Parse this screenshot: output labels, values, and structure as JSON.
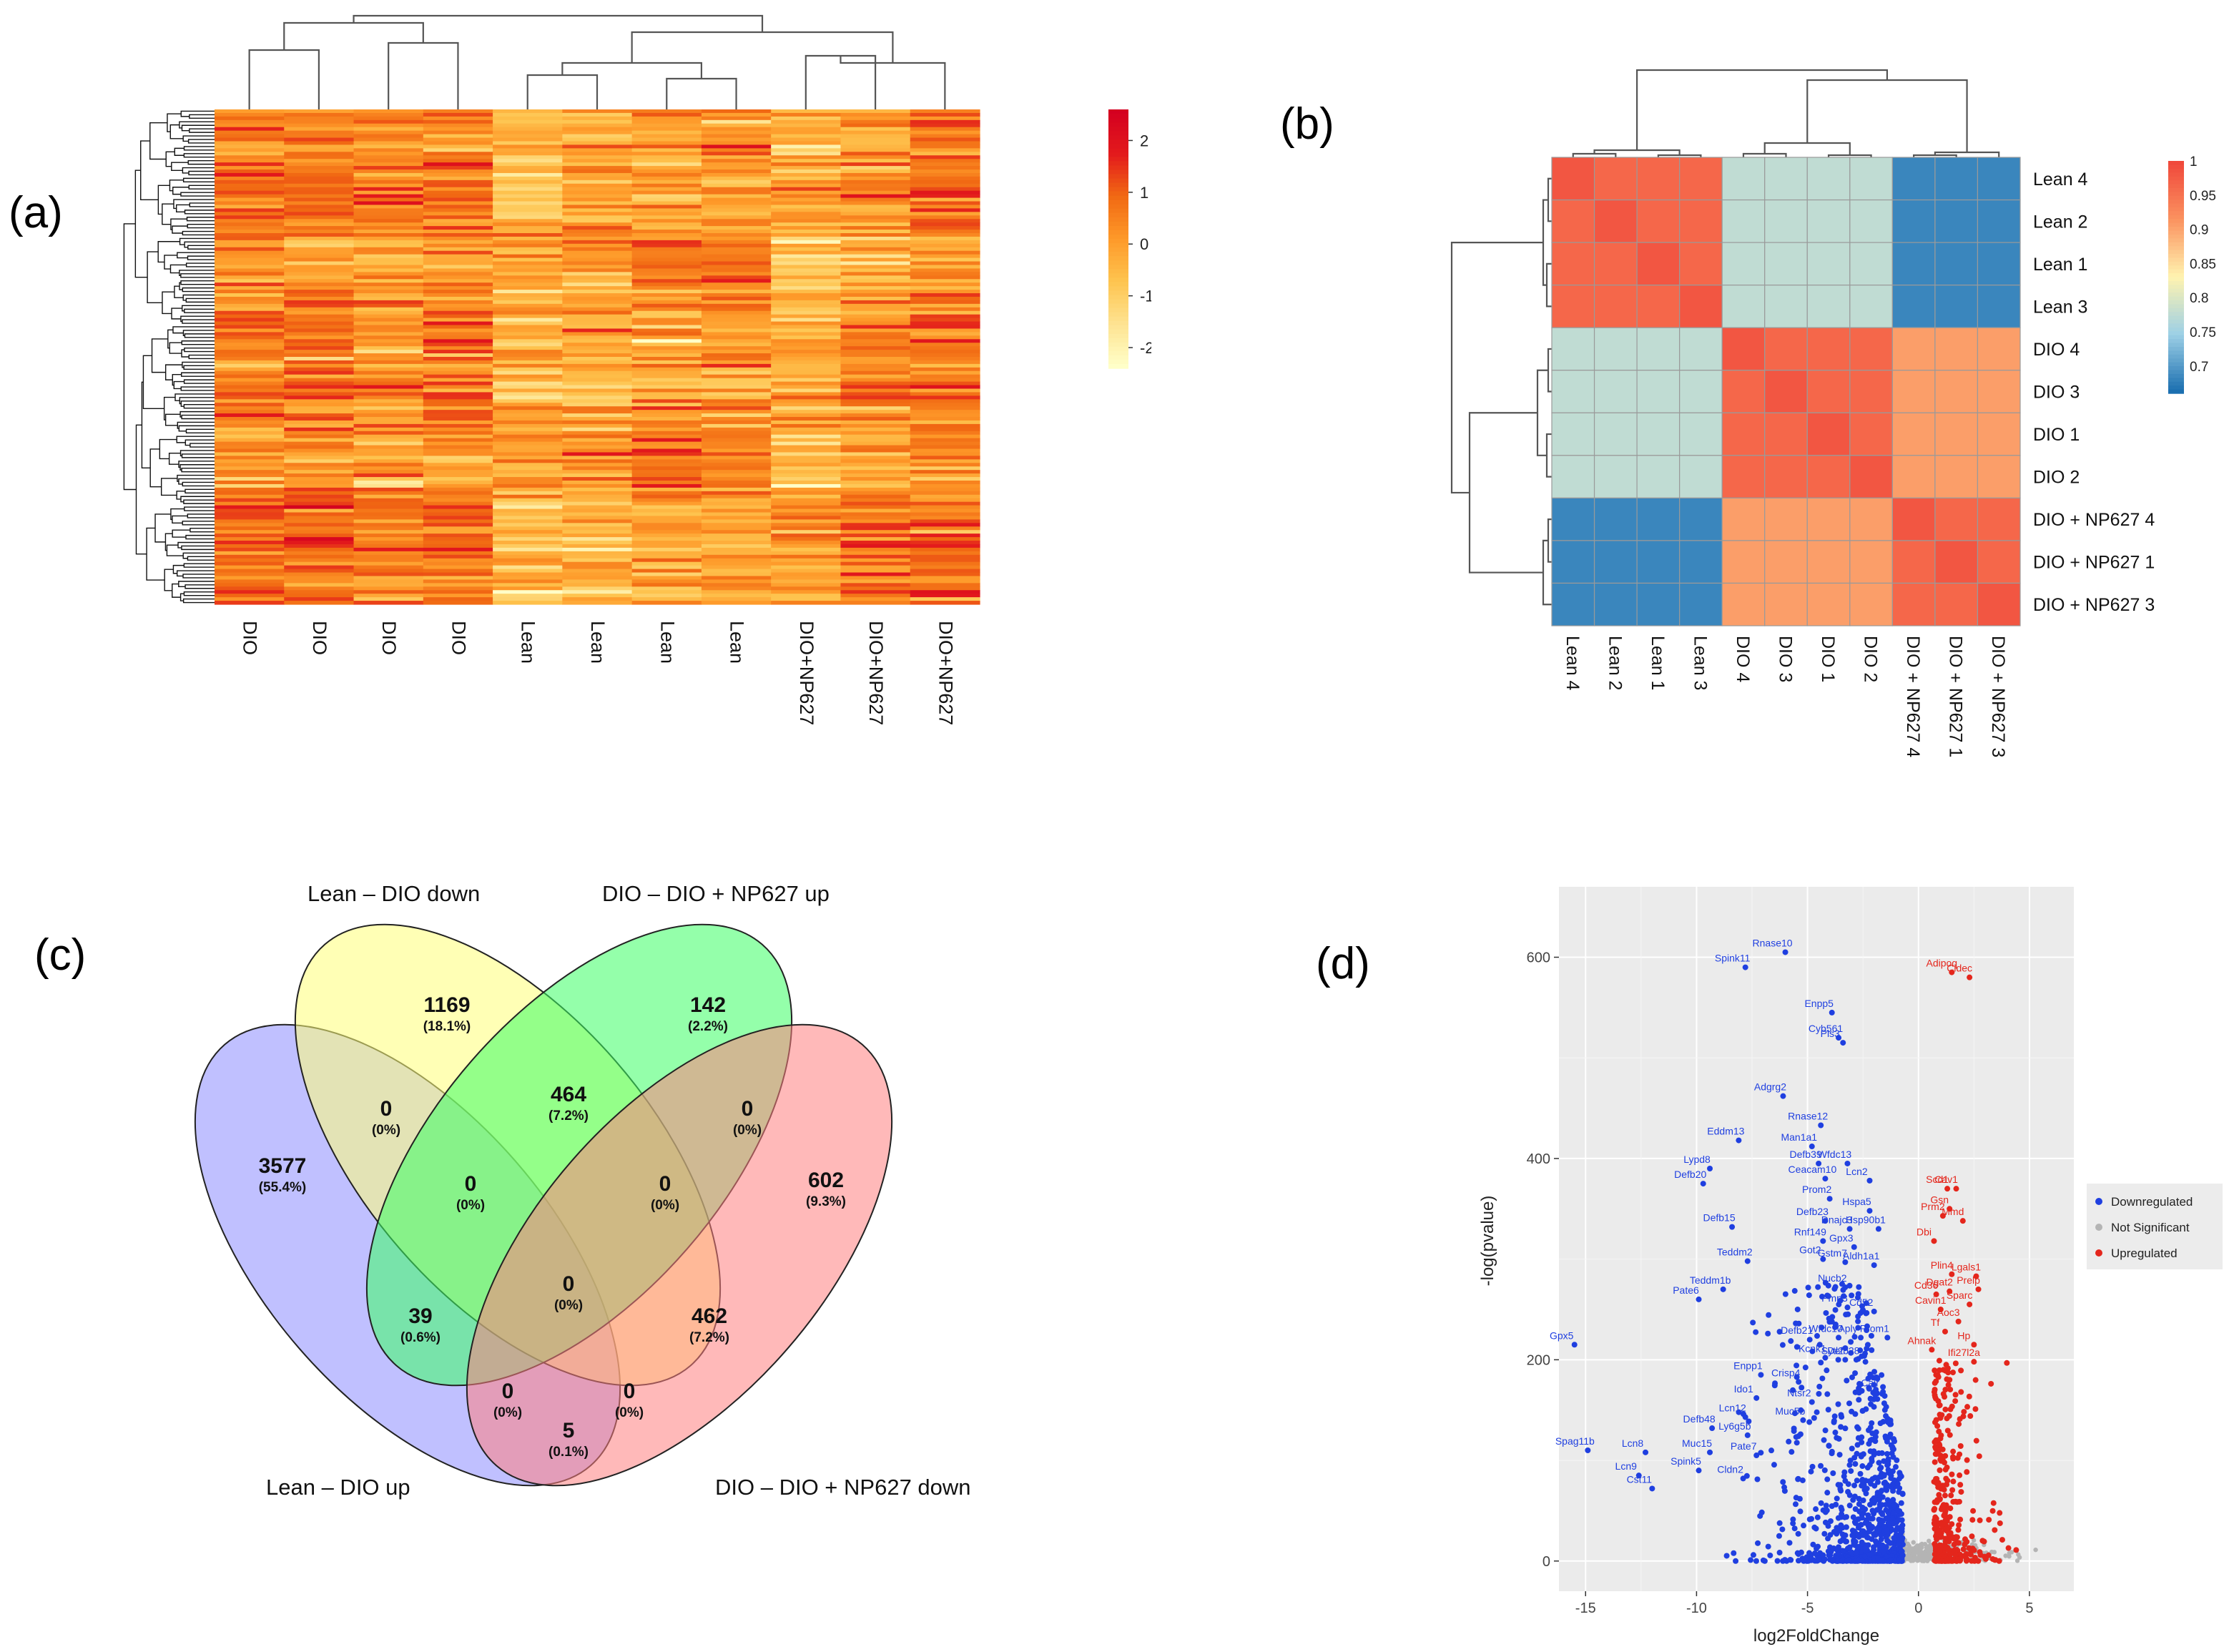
{
  "panel_labels": {
    "a": "(a)",
    "b": "(b)",
    "c": "(c)",
    "d": "(d)"
  },
  "chart_data": [
    {
      "id": "a",
      "type": "heatmap",
      "title": "",
      "columns": [
        "DIO",
        "DIO",
        "DIO",
        "DIO",
        "Lean",
        "Lean",
        "Lean",
        "Lean",
        "DIO+NP627",
        "DIO+NP627",
        "DIO+NP627"
      ],
      "color_scale": {
        "ticks": [
          "2",
          "1",
          "0",
          "-1",
          "-2"
        ],
        "tick_values": [
          2,
          1,
          0,
          -1,
          -2
        ],
        "range": [
          -2.4,
          2.6
        ],
        "colors": [
          "#ffffc8",
          "#fee391",
          "#fec44f",
          "#fe9929",
          "#f16913",
          "#e31a1c",
          "#d40020"
        ]
      },
      "row_count": 140,
      "column_means": [
        0.45,
        0.6,
        0.25,
        0.45,
        -0.45,
        -0.1,
        0.15,
        0.1,
        -0.3,
        0.2,
        0.5
      ]
    },
    {
      "id": "b",
      "type": "heatmap",
      "rows": [
        "Lean 4",
        "Lean 2",
        "Lean 1",
        "Lean 3",
        "DIO 4",
        "DIO 3",
        "DIO 1",
        "DIO 2",
        "DIO + NP627 4",
        "DIO + NP627 1",
        "DIO + NP627 3"
      ],
      "columns": [
        "Lean 4",
        "Lean 2",
        "Lean 1",
        "Lean 3",
        "DIO 4",
        "DIO 3",
        "DIO 1",
        "DIO 2",
        "DIO + NP627 4",
        "DIO + NP627 1",
        "DIO + NP627 3"
      ],
      "groups": [
        0,
        0,
        0,
        0,
        1,
        1,
        1,
        1,
        2,
        2,
        2
      ],
      "block_values": [
        [
          0.965,
          0.775,
          0.68
        ],
        [
          0.775,
          0.965,
          0.905
        ],
        [
          0.68,
          0.905,
          0.965
        ]
      ],
      "self_value": 1.0,
      "color_scale": {
        "ticks": [
          "1",
          "0.95",
          "0.9",
          "0.85",
          "0.8",
          "0.75",
          "0.7"
        ],
        "tick_values": [
          1,
          0.95,
          0.9,
          0.85,
          0.8,
          0.75,
          0.7
        ],
        "range": [
          0.66,
          1.0
        ],
        "colors": [
          "#1b6fb0",
          "#9dd0e6",
          "#fff3b0",
          "#fb9360",
          "#f0493b"
        ]
      }
    },
    {
      "id": "c",
      "type": "venn",
      "sets": [
        {
          "name": "Lean – DIO up",
          "color": "#8c8cff"
        },
        {
          "name": "Lean – DIO down",
          "color": "#ffff78"
        },
        {
          "name": "DIO – DIO + NP627 up",
          "color": "#3cff64"
        },
        {
          "name": "DIO – DIO + NP627 down",
          "color": "#ff8080"
        }
      ],
      "regions": [
        {
          "key": "A",
          "count": "3577",
          "pct": "(55.4%)"
        },
        {
          "key": "B",
          "count": "1169",
          "pct": "(18.1%)"
        },
        {
          "key": "C",
          "count": "142",
          "pct": "(2.2%)"
        },
        {
          "key": "D",
          "count": "602",
          "pct": "(9.3%)"
        },
        {
          "key": "AB",
          "count": "0",
          "pct": "(0%)"
        },
        {
          "key": "BC",
          "count": "464",
          "pct": "(7.2%)"
        },
        {
          "key": "CD",
          "count": "0",
          "pct": "(0%)"
        },
        {
          "key": "ABC",
          "count": "0",
          "pct": "(0%)"
        },
        {
          "key": "BCD",
          "count": "0",
          "pct": "(0%)"
        },
        {
          "key": "AC",
          "count": "39",
          "pct": "(0.6%)"
        },
        {
          "key": "ABCD",
          "count": "0",
          "pct": "(0%)"
        },
        {
          "key": "BD",
          "count": "462",
          "pct": "(7.2%)"
        },
        {
          "key": "ACD",
          "count": "0",
          "pct": "(0%)"
        },
        {
          "key": "ABD",
          "count": "0",
          "pct": "(0%)"
        },
        {
          "key": "AD",
          "count": "5",
          "pct": "(0.1%)"
        }
      ]
    },
    {
      "id": "d",
      "type": "scatter",
      "title": "",
      "xlabel": "log2FoldChange",
      "ylabel": "-log(pvalue)",
      "xlim": [
        -16.2,
        7
      ],
      "ylim": [
        -30,
        670
      ],
      "xticks": [
        -15,
        -10,
        -5,
        0,
        5
      ],
      "yticks": [
        0,
        200,
        400,
        600
      ],
      "legend": {
        "position": "right",
        "items": [
          {
            "label": "Downregulated",
            "color": "#1f3fe0"
          },
          {
            "label": "Not Significant",
            "color": "#b4b4b4"
          },
          {
            "label": "Upregulated",
            "color": "#e4261c"
          }
        ]
      },
      "labeled_points": [
        {
          "gene": "Rnase10",
          "x": -6.0,
          "y": 605,
          "group": "down"
        },
        {
          "gene": "Spink11",
          "x": -7.8,
          "y": 590,
          "group": "down"
        },
        {
          "gene": "Enpp5",
          "x": -3.9,
          "y": 545,
          "group": "down"
        },
        {
          "gene": "Cyb561",
          "x": -3.6,
          "y": 520,
          "group": "down"
        },
        {
          "gene": "Pls3",
          "x": -3.4,
          "y": 515,
          "group": "down"
        },
        {
          "gene": "Adgrg2",
          "x": -6.1,
          "y": 462,
          "group": "down"
        },
        {
          "gene": "Rnase12",
          "x": -4.4,
          "y": 433,
          "group": "down"
        },
        {
          "gene": "Eddm13",
          "x": -8.1,
          "y": 418,
          "group": "down"
        },
        {
          "gene": "Man1a1",
          "x": -4.8,
          "y": 412,
          "group": "down"
        },
        {
          "gene": "Defb39",
          "x": -4.5,
          "y": 395,
          "group": "down"
        },
        {
          "gene": "Wfdc13",
          "x": -3.2,
          "y": 395,
          "group": "down"
        },
        {
          "gene": "Lypd8",
          "x": -9.4,
          "y": 390,
          "group": "down"
        },
        {
          "gene": "Defb20",
          "x": -9.7,
          "y": 375,
          "group": "down"
        },
        {
          "gene": "Ceacam10",
          "x": -4.2,
          "y": 380,
          "group": "down"
        },
        {
          "gene": "Lcn2",
          "x": -2.2,
          "y": 378,
          "group": "down"
        },
        {
          "gene": "Prom2",
          "x": -4.0,
          "y": 360,
          "group": "down"
        },
        {
          "gene": "Hspa5",
          "x": -2.2,
          "y": 348,
          "group": "down"
        },
        {
          "gene": "Defb23",
          "x": -4.2,
          "y": 338,
          "group": "down"
        },
        {
          "gene": "Dnajc3",
          "x": -3.1,
          "y": 330,
          "group": "down"
        },
        {
          "gene": "Hsp90b1",
          "x": -1.8,
          "y": 330,
          "group": "down"
        },
        {
          "gene": "Defb15",
          "x": -8.4,
          "y": 332,
          "group": "down"
        },
        {
          "gene": "Rnf149",
          "x": -4.3,
          "y": 318,
          "group": "down"
        },
        {
          "gene": "Gpx3",
          "x": -2.9,
          "y": 312,
          "group": "down"
        },
        {
          "gene": "Teddm2",
          "x": -7.7,
          "y": 298,
          "group": "down"
        },
        {
          "gene": "Got2",
          "x": -4.3,
          "y": 300,
          "group": "down"
        },
        {
          "gene": "Gstm7",
          "x": -3.3,
          "y": 297,
          "group": "down"
        },
        {
          "gene": "Aldh1a1",
          "x": -2.0,
          "y": 294,
          "group": "down"
        },
        {
          "gene": "Teddm1b",
          "x": -8.8,
          "y": 270,
          "group": "down"
        },
        {
          "gene": "Nucb2",
          "x": -3.3,
          "y": 272,
          "group": "down"
        },
        {
          "gene": "Pate6",
          "x": -9.9,
          "y": 260,
          "group": "down"
        },
        {
          "gene": "Pmp3",
          "x": -3.2,
          "y": 252,
          "group": "down"
        },
        {
          "gene": "Cd52",
          "x": -2.0,
          "y": 248,
          "group": "down"
        },
        {
          "gene": "Gpx5",
          "x": -15.5,
          "y": 215,
          "group": "down"
        },
        {
          "gene": "Defb21",
          "x": -4.9,
          "y": 220,
          "group": "down"
        },
        {
          "gene": "Wfdc10",
          "x": -3.6,
          "y": 222,
          "group": "down"
        },
        {
          "gene": "Aply",
          "x": -2.6,
          "y": 222,
          "group": "down"
        },
        {
          "gene": "Prom1",
          "x": -1.4,
          "y": 222,
          "group": "down"
        },
        {
          "gene": "Kcnk1",
          "x": -4.2,
          "y": 202,
          "group": "down"
        },
        {
          "gene": "Sytl2",
          "x": -3.3,
          "y": 200,
          "group": "down"
        },
        {
          "gene": "Defb28",
          "x": -2.8,
          "y": 200,
          "group": "down"
        },
        {
          "gene": "Enpp1",
          "x": -7.1,
          "y": 185,
          "group": "down"
        },
        {
          "gene": "Crisp4",
          "x": -5.4,
          "y": 178,
          "group": "down"
        },
        {
          "gene": "Ido1",
          "x": -7.3,
          "y": 162,
          "group": "down"
        },
        {
          "gene": "Ntsr2",
          "x": -4.8,
          "y": 158,
          "group": "down"
        },
        {
          "gene": "Calr",
          "x": -1.6,
          "y": 168,
          "group": "down"
        },
        {
          "gene": "Lcn12",
          "x": -7.8,
          "y": 143,
          "group": "down"
        },
        {
          "gene": "Muc5b",
          "x": -5.2,
          "y": 140,
          "group": "down"
        },
        {
          "gene": "Defb48",
          "x": -9.3,
          "y": 132,
          "group": "down"
        },
        {
          "gene": "Ly6g5b",
          "x": -7.7,
          "y": 125,
          "group": "down"
        },
        {
          "gene": "Spag11b",
          "x": -14.9,
          "y": 110,
          "group": "down"
        },
        {
          "gene": "Lcn8",
          "x": -12.3,
          "y": 108,
          "group": "down"
        },
        {
          "gene": "Muc15",
          "x": -9.4,
          "y": 108,
          "group": "down"
        },
        {
          "gene": "Pate7",
          "x": -7.3,
          "y": 105,
          "group": "down"
        },
        {
          "gene": "Spink5",
          "x": -9.9,
          "y": 90,
          "group": "down"
        },
        {
          "gene": "Cldn2",
          "x": -7.9,
          "y": 82,
          "group": "down"
        },
        {
          "gene": "Lcn9",
          "x": -12.6,
          "y": 85,
          "group": "down"
        },
        {
          "gene": "Cst11",
          "x": -12.0,
          "y": 72,
          "group": "down"
        },
        {
          "gene": "Adipoq",
          "x": 1.5,
          "y": 585,
          "group": "up"
        },
        {
          "gene": "Cidec",
          "x": 2.3,
          "y": 580,
          "group": "up"
        },
        {
          "gene": "Cav1",
          "x": 1.7,
          "y": 370,
          "group": "up"
        },
        {
          "gene": "Scd1",
          "x": 1.3,
          "y": 370,
          "group": "up"
        },
        {
          "gene": "Gsn",
          "x": 1.4,
          "y": 350,
          "group": "up"
        },
        {
          "gene": "Prm2",
          "x": 1.1,
          "y": 343,
          "group": "up"
        },
        {
          "gene": "Mmd",
          "x": 2.0,
          "y": 338,
          "group": "up"
        },
        {
          "gene": "Dbi",
          "x": 0.7,
          "y": 318,
          "group": "up"
        },
        {
          "gene": "Plin4",
          "x": 1.5,
          "y": 285,
          "group": "up"
        },
        {
          "gene": "Lgals1",
          "x": 2.6,
          "y": 283,
          "group": "up"
        },
        {
          "gene": "Cd36",
          "x": 0.8,
          "y": 265,
          "group": "up"
        },
        {
          "gene": "Dgat2",
          "x": 1.4,
          "y": 268,
          "group": "up"
        },
        {
          "gene": "Prelp",
          "x": 2.7,
          "y": 270,
          "group": "up"
        },
        {
          "gene": "Sparc",
          "x": 2.3,
          "y": 255,
          "group": "up"
        },
        {
          "gene": "Cavin1",
          "x": 1.0,
          "y": 250,
          "group": "up"
        },
        {
          "gene": "Aoc3",
          "x": 1.8,
          "y": 238,
          "group": "up"
        },
        {
          "gene": "Tf",
          "x": 1.2,
          "y": 228,
          "group": "up"
        },
        {
          "gene": "Hp",
          "x": 2.5,
          "y": 215,
          "group": "up"
        },
        {
          "gene": "Ahnak",
          "x": 0.6,
          "y": 210,
          "group": "up"
        },
        {
          "gene": "Ifi27l2a",
          "x": 2.5,
          "y": 198,
          "group": "up"
        }
      ],
      "background_points": {
        "down_count": 900,
        "up_count": 330,
        "ns_count": 420
      }
    }
  ]
}
